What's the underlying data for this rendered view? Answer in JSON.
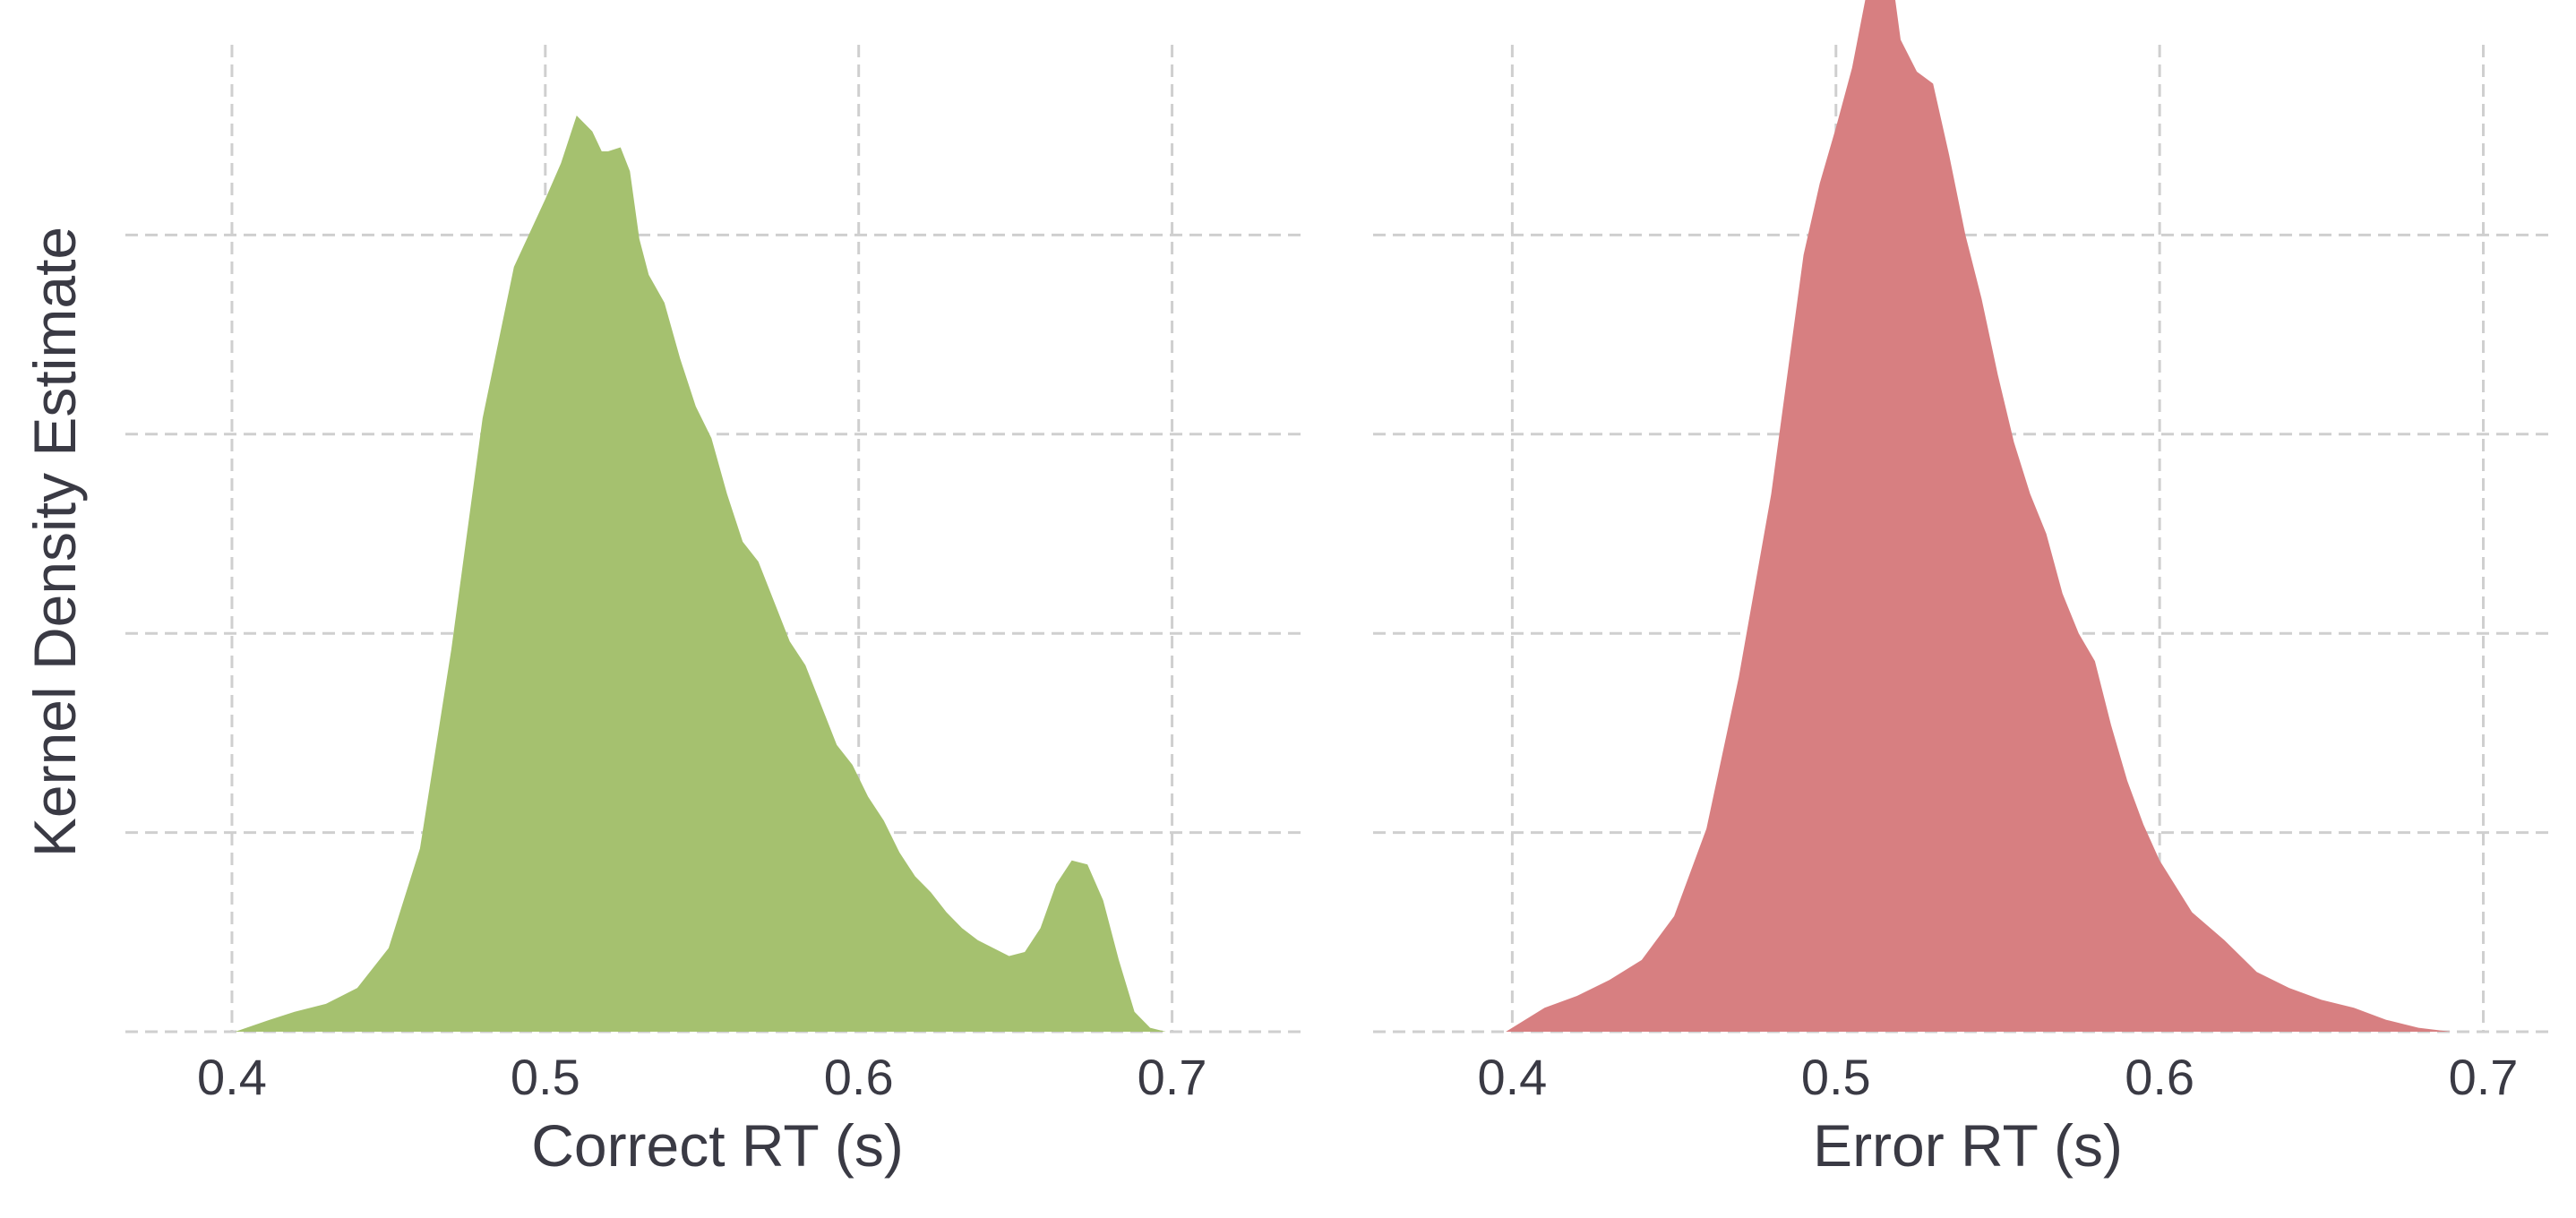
{
  "ylabel": "Kernel Density Estimate",
  "colors": {
    "correct": "#a5c16f",
    "error": "#d77f81",
    "grid": "#cfcfcf"
  },
  "chart_data": [
    {
      "type": "area",
      "panel": "left",
      "xlabel": "Correct RT (s)",
      "ylabel": "Kernel Density Estimate",
      "xlim": [
        0.366,
        0.741
      ],
      "ylim": [
        0,
        25
      ],
      "xticks": [
        0.4,
        0.5,
        0.6,
        0.7
      ],
      "xtick_labels": [
        "0.4",
        "0.5",
        "0.6",
        "0.7"
      ],
      "yticks": [
        5,
        10,
        15,
        20
      ],
      "ytick_labels_shown": false,
      "grid": true,
      "color": "#a5c16f",
      "series": [
        {
          "x": [
            0.401,
            0.412,
            0.42,
            0.43,
            0.44,
            0.45,
            0.46,
            0.47,
            0.48,
            0.49,
            0.5,
            0.505,
            0.51,
            0.515,
            0.518,
            0.52,
            0.524,
            0.527,
            0.53,
            0.533,
            0.538,
            0.543,
            0.548,
            0.553,
            0.558,
            0.563,
            0.568,
            0.573,
            0.578,
            0.583,
            0.588,
            0.593,
            0.598,
            0.603,
            0.608,
            0.613,
            0.618,
            0.623,
            0.628,
            0.633,
            0.638,
            0.643,
            0.648,
            0.653,
            0.658,
            0.663,
            0.668,
            0.673,
            0.678,
            0.683,
            0.688,
            0.693,
            0.698,
            0.703
          ],
          "y": [
            0.0,
            0.3,
            0.5,
            0.7,
            1.1,
            2.1,
            4.6,
            9.6,
            15.4,
            19.2,
            20.9,
            21.8,
            23.0,
            22.6,
            22.1,
            22.1,
            22.2,
            21.6,
            19.9,
            19.0,
            18.3,
            16.9,
            15.7,
            14.9,
            13.5,
            12.3,
            11.8,
            10.8,
            9.8,
            9.2,
            8.2,
            7.2,
            6.7,
            5.9,
            5.3,
            4.5,
            3.9,
            3.5,
            3.0,
            2.6,
            2.3,
            2.1,
            1.9,
            2.0,
            2.6,
            3.7,
            4.3,
            4.2,
            3.3,
            1.8,
            0.5,
            0.1,
            0.0,
            0.0
          ]
        }
      ]
    },
    {
      "type": "area",
      "panel": "right",
      "xlabel": "Error RT (s)",
      "xlim": [
        0.357,
        0.722
      ],
      "ylim": [
        0,
        25
      ],
      "xticks": [
        0.4,
        0.5,
        0.6,
        0.7
      ],
      "xtick_labels": [
        "0.4",
        "0.5",
        "0.6",
        "0.7"
      ],
      "yticks": [
        5,
        10,
        15,
        20
      ],
      "ytick_labels_shown": false,
      "grid": true,
      "color": "#d77f81",
      "series": [
        {
          "x": [
            0.398,
            0.41,
            0.42,
            0.43,
            0.44,
            0.45,
            0.46,
            0.47,
            0.48,
            0.49,
            0.495,
            0.5,
            0.505,
            0.51,
            0.515,
            0.518,
            0.52,
            0.525,
            0.53,
            0.535,
            0.54,
            0.545,
            0.55,
            0.555,
            0.56,
            0.565,
            0.57,
            0.575,
            0.58,
            0.585,
            0.59,
            0.595,
            0.6,
            0.61,
            0.62,
            0.63,
            0.64,
            0.65,
            0.66,
            0.67,
            0.68,
            0.69,
            0.7
          ],
          "y": [
            0.0,
            0.6,
            0.9,
            1.3,
            1.8,
            2.9,
            5.1,
            8.9,
            13.5,
            19.5,
            21.3,
            22.7,
            24.2,
            26.3,
            26.7,
            26.1,
            24.9,
            24.1,
            23.8,
            22.0,
            20.0,
            18.4,
            16.5,
            14.8,
            13.5,
            12.5,
            11.0,
            10.0,
            9.3,
            7.7,
            6.3,
            5.2,
            4.3,
            3.0,
            2.3,
            1.5,
            1.1,
            0.8,
            0.6,
            0.3,
            0.1,
            0.0,
            0.0
          ]
        }
      ]
    }
  ]
}
